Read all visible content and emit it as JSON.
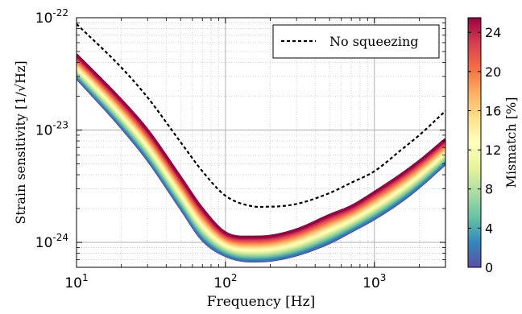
{
  "chart_data": {
    "type": "line",
    "title": "",
    "xlabel": "Frequency [Hz]",
    "ylabel": "Strain sensitivity [1/√Hz]",
    "x_scale": "log",
    "y_scale": "log",
    "xlim": [
      10,
      3000
    ],
    "ylim": [
      6e-25,
      1e-22
    ],
    "grid": true,
    "x_ticks": [
      {
        "value": 10,
        "base": "10",
        "exp": "1"
      },
      {
        "value": 100,
        "base": "10",
        "exp": "2"
      },
      {
        "value": 1000,
        "base": "10",
        "exp": "3"
      }
    ],
    "y_ticks": [
      {
        "value": 1e-24,
        "base": "10",
        "exp": "-24"
      },
      {
        "value": 1e-23,
        "base": "10",
        "exp": "-23"
      },
      {
        "value": 1e-22,
        "base": "10",
        "exp": "-22"
      }
    ],
    "legend": {
      "placement": "top-right",
      "entries": [
        {
          "label": "No squeezing",
          "style": "dashed",
          "color": "#000000"
        }
      ]
    },
    "reference_curve": {
      "name": "No squeezing",
      "x": [
        10,
        20,
        30,
        50,
        70,
        100,
        150,
        200,
        300,
        500,
        700,
        1000,
        1500,
        2000,
        3000
      ],
      "y": [
        8.8e-23,
        3.6e-23,
        1.95e-23,
        7.8e-24,
        4.3e-24,
        2.6e-24,
        2.1e-24,
        2.08e-24,
        2.2e-24,
        2.75e-24,
        3.4e-24,
        4.3e-24,
        6.6e-24,
        9e-24,
        1.48e-23
      ]
    },
    "band": {
      "colorbar_label": "Mismatch [%]",
      "colorbar_range": [
        0,
        25.5
      ],
      "colorbar_ticks": [
        "0",
        "4",
        "8",
        "12",
        "16",
        "20",
        "24"
      ],
      "colormap": [
        "#5e4fa2",
        "#3288bd",
        "#66c2a5",
        "#abdda4",
        "#e6f598",
        "#ffffbf",
        "#fee08b",
        "#fdae61",
        "#f46d43",
        "#d53e4f",
        "#9e0142"
      ],
      "mismatch_min": 0,
      "mismatch_max": 25.5,
      "x": [
        10,
        20,
        30,
        50,
        70,
        100,
        150,
        200,
        300,
        500,
        700,
        1000,
        1500,
        2000,
        3000
      ],
      "lower_y": [
        2.9e-23,
        1.05e-23,
        5.4e-24,
        2e-24,
        1.05e-24,
        7.6e-25,
        6.8e-25,
        6.9e-25,
        7.7e-25,
        9.9e-25,
        1.25e-24,
        1.62e-24,
        2.3e-24,
        3.1e-24,
        5e-24
      ],
      "upper_y": [
        4.7e-23,
        1.85e-23,
        1e-23,
        3.8e-24,
        2e-24,
        1.22e-24,
        1.12e-24,
        1.14e-24,
        1.3e-24,
        1.75e-24,
        2.1e-24,
        2.8e-24,
        4e-24,
        5.3e-24,
        8.3e-24
      ]
    }
  }
}
